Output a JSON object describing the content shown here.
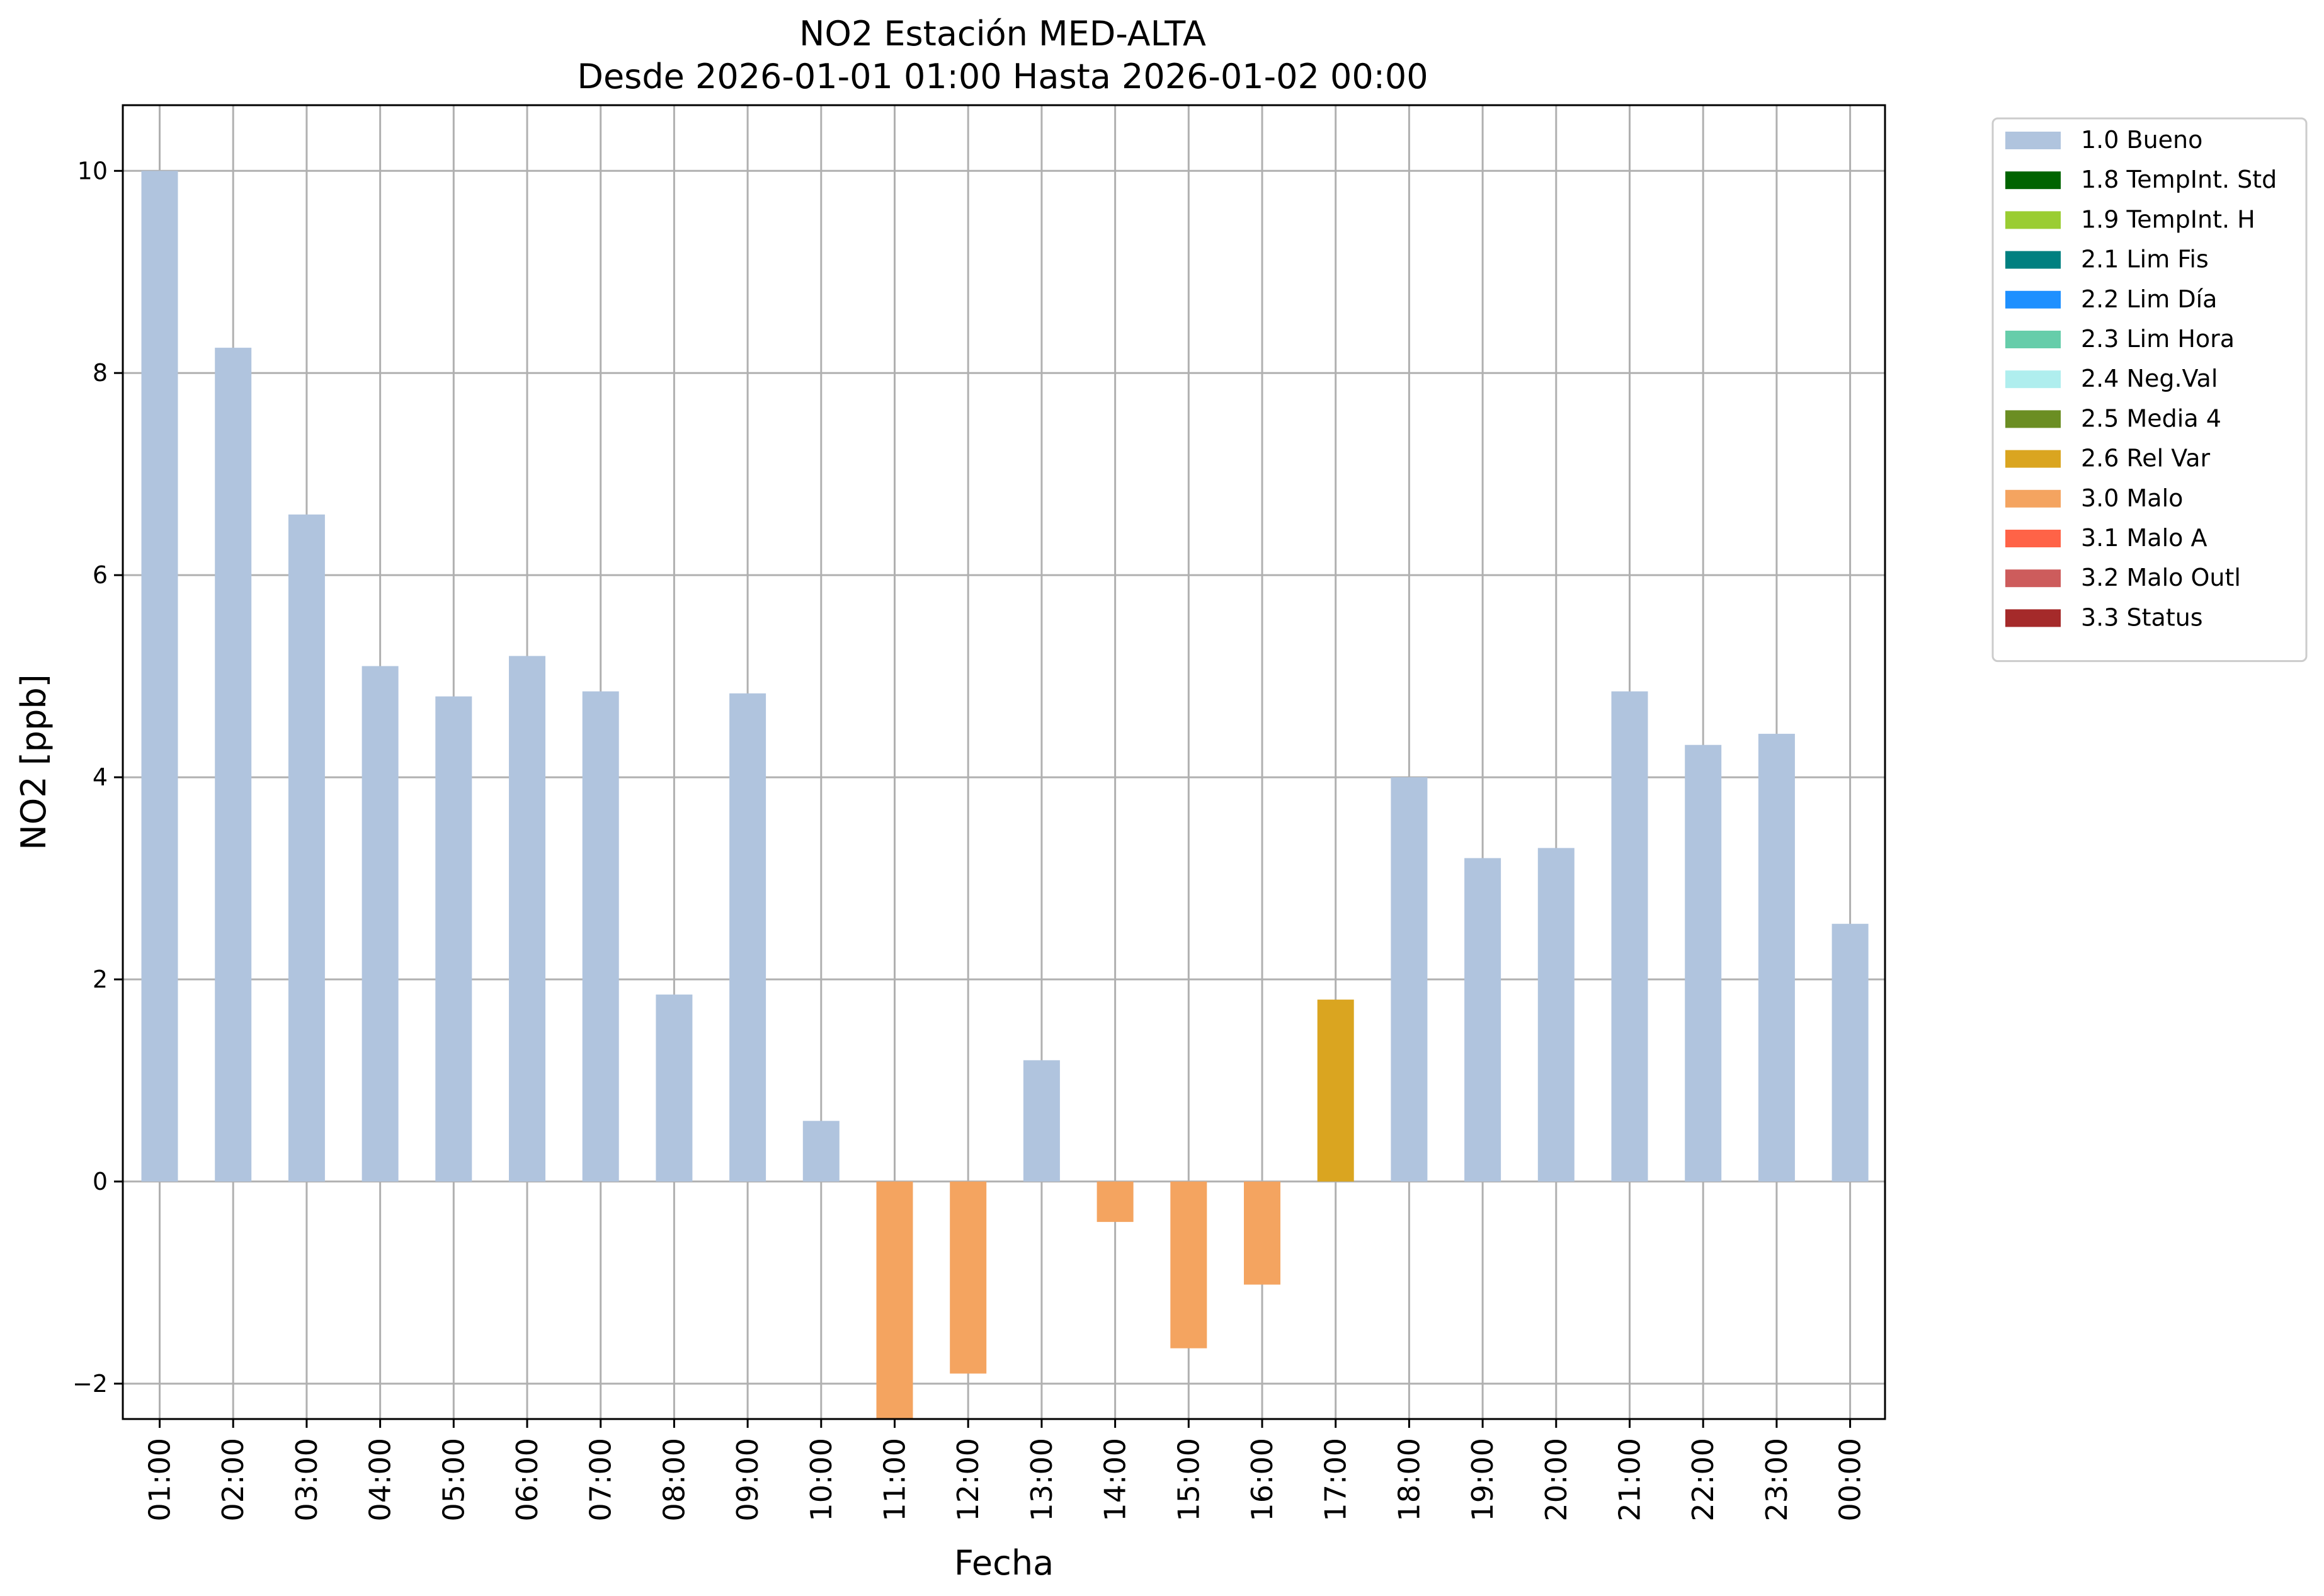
{
  "chart_data": {
    "type": "bar",
    "title": "NO2 Estación MED-ALTA",
    "subtitle": "Desde 2026-01-01 01:00 Hasta 2026-01-02 00:00",
    "xlabel": "Fecha",
    "ylabel": "NO2 [ppb]",
    "ylim": [
      -2.35,
      10.65
    ],
    "yticks": [
      -2,
      0,
      2,
      4,
      6,
      8,
      10
    ],
    "ytick_labels": [
      "−2",
      "0",
      "2",
      "4",
      "6",
      "8",
      "10"
    ],
    "grid": true,
    "legend_position": "outside right, top",
    "categories": [
      "01:00",
      "02:00",
      "03:00",
      "04:00",
      "05:00",
      "06:00",
      "07:00",
      "08:00",
      "09:00",
      "10:00",
      "11:00",
      "12:00",
      "13:00",
      "14:00",
      "15:00",
      "16:00",
      "17:00",
      "18:00",
      "19:00",
      "20:00",
      "21:00",
      "22:00",
      "23:00",
      "00:00"
    ],
    "values": [
      10.0,
      8.25,
      6.6,
      5.1,
      4.8,
      5.2,
      4.85,
      1.85,
      4.83,
      0.6,
      -2.35,
      -1.9,
      1.2,
      -0.4,
      -1.65,
      -1.02,
      1.8,
      4.0,
      3.2,
      3.3,
      4.85,
      4.32,
      4.43,
      2.55
    ],
    "flags": [
      "1.0",
      "1.0",
      "1.0",
      "1.0",
      "1.0",
      "1.0",
      "1.0",
      "1.0",
      "1.0",
      "1.0",
      "3.0",
      "3.0",
      "1.0",
      "3.0",
      "3.0",
      "3.0",
      "2.6",
      "1.0",
      "1.0",
      "1.0",
      "1.0",
      "1.0",
      "1.0",
      "1.0"
    ],
    "legend": [
      {
        "code": "1.0",
        "label": "1.0 Bueno",
        "color": "#b0c4de"
      },
      {
        "code": "1.8",
        "label": "1.8 TempInt. Std",
        "color": "#006400"
      },
      {
        "code": "1.9",
        "label": "1.9 TempInt. H",
        "color": "#9acd32"
      },
      {
        "code": "2.1",
        "label": "2.1 Lim Fis",
        "color": "#008080"
      },
      {
        "code": "2.2",
        "label": "2.2 Lim Día",
        "color": "#1e90ff"
      },
      {
        "code": "2.3",
        "label": "2.3 Lim Hora",
        "color": "#66cdaa"
      },
      {
        "code": "2.4",
        "label": "2.4 Neg.Val",
        "color": "#afeeee"
      },
      {
        "code": "2.5",
        "label": "2.5 Media 4",
        "color": "#6b8e23"
      },
      {
        "code": "2.6",
        "label": "2.6 Rel Var",
        "color": "#daa520"
      },
      {
        "code": "3.0",
        "label": "3.0 Malo",
        "color": "#f4a460"
      },
      {
        "code": "3.1",
        "label": "3.1 Malo A",
        "color": "#ff6347"
      },
      {
        "code": "3.2",
        "label": "3.2 Malo Outl",
        "color": "#cd5c5c"
      },
      {
        "code": "3.3",
        "label": "3.3 Status",
        "color": "#a52a2a"
      }
    ]
  }
}
